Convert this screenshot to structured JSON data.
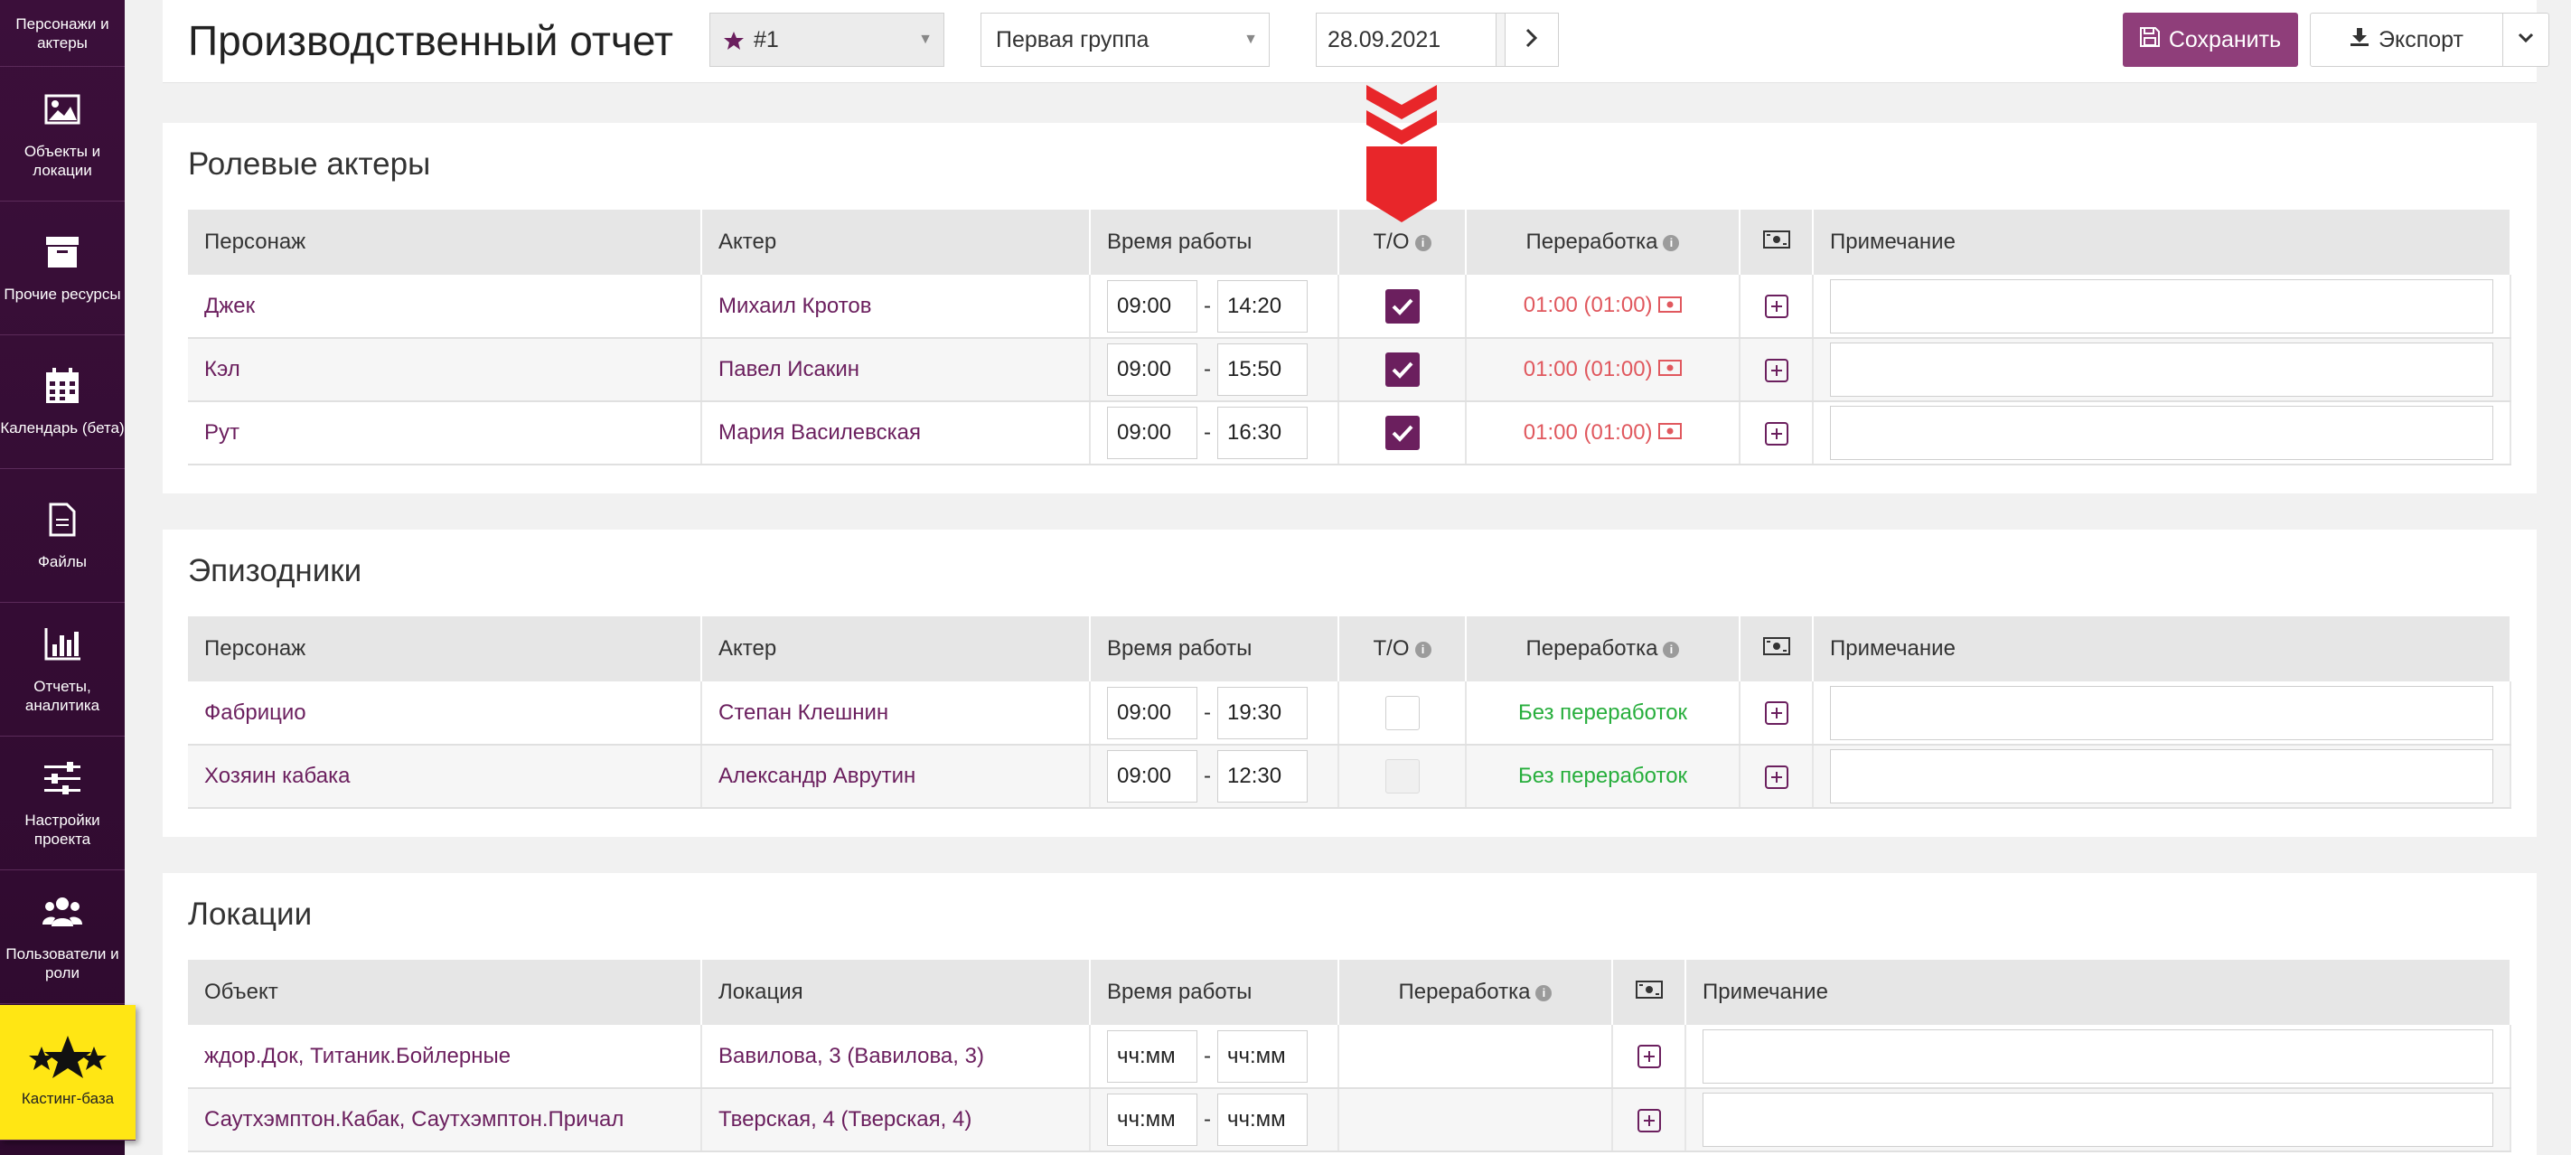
{
  "sidebar": {
    "items": [
      {
        "label": "Персонажи и актеры",
        "icon": "people-icon"
      },
      {
        "label": "Объекты и локации",
        "icon": "image-icon"
      },
      {
        "label": "Прочие ресурсы",
        "icon": "archive-box-icon"
      },
      {
        "label": "Календарь (бета)",
        "icon": "calendar-icon"
      },
      {
        "label": "Файлы",
        "icon": "file-icon"
      },
      {
        "label": "Отчеты, аналитика",
        "icon": "bar-chart-icon"
      },
      {
        "label": "Настройки проекта",
        "icon": "sliders-icon"
      },
      {
        "label": "Пользователи и роли",
        "icon": "users-icon"
      },
      {
        "label": "Кастинг-база",
        "icon": "stars-icon"
      }
    ]
  },
  "header": {
    "title": "Производственный отчет",
    "report_select": "#1",
    "group_select": "Первая группа",
    "date": "28.09.2021",
    "save_label": "Сохранить",
    "export_label": "Экспорт"
  },
  "sections": {
    "roles": {
      "title": "Ролевые актеры",
      "columns": [
        "Персонаж",
        "Актер",
        "Время работы",
        "Т/О",
        "Переработка",
        "Примечание"
      ],
      "rows": [
        {
          "character": "Джек",
          "actor": "Михаил Кротов",
          "start": "09:00",
          "end": "14:20",
          "overtime": "01:00 (01:00)"
        },
        {
          "character": "Кэл",
          "actor": "Павел Исакин",
          "start": "09:00",
          "end": "15:50",
          "overtime": "01:00 (01:00)"
        },
        {
          "character": "Рут",
          "actor": "Мария Василевская",
          "start": "09:00",
          "end": "16:30",
          "overtime": "01:00 (01:00)"
        }
      ]
    },
    "extras": {
      "title": "Эпизодники",
      "columns": [
        "Персонаж",
        "Актер",
        "Время работы",
        "Т/О",
        "Переработка",
        "Примечание"
      ],
      "rows": [
        {
          "character": "Фабрицио",
          "actor": "Степан Клешнин",
          "start": "09:00",
          "end": "19:30",
          "overtime": "Без переработок"
        },
        {
          "character": "Хозяин кабака",
          "actor": "Александр Аврутин",
          "start": "09:00",
          "end": "12:30",
          "overtime": "Без переработок"
        }
      ]
    },
    "locations": {
      "title": "Локации",
      "columns": [
        "Объект",
        "Локация",
        "Время работы",
        "Переработка",
        "Примечание"
      ],
      "rows": [
        {
          "object": "ждор.Док, Титаник.Бойлерные",
          "location": "Вавилова, 3 (Вавилова, 3)",
          "start_placeholder": "чч:мм",
          "end_placeholder": "чч:мм"
        },
        {
          "object": "Саутхэмптон.Кабак, Саутхэмптон.Причал",
          "location": "Тверская, 4 (Тверская, 4)",
          "start_placeholder": "чч:мм",
          "end_placeholder": "чч:мм"
        }
      ]
    }
  },
  "colors": {
    "accent": "#6b1f5e",
    "save_button": "#8f3e7a",
    "sidebar": "#3b0f3a",
    "highlight": "#ffe614",
    "overtime_red": "#e0585e",
    "overtime_green": "#27ae3c",
    "annotation_arrow": "#e8262a"
  }
}
